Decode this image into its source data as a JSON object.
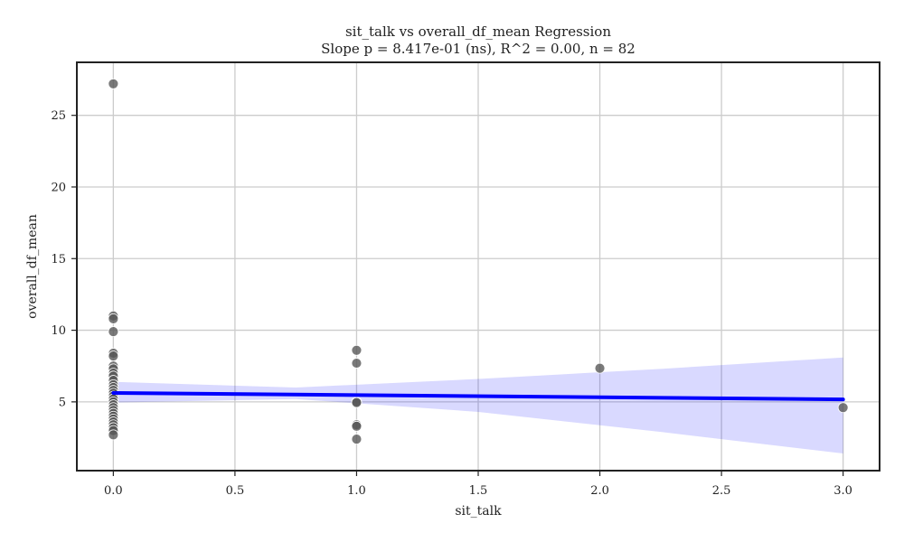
{
  "chart_data": {
    "type": "scatter",
    "title_line1": "sit_talk vs overall_df_mean Regression",
    "title_line2": "Slope p = 8.417e-01 (ns), R^2 = 0.00, n = 82",
    "xlabel": "sit_talk",
    "ylabel": "overall_df_mean",
    "xlim": [
      -0.15,
      3.15
    ],
    "ylim": [
      0.2,
      28.7
    ],
    "xticks": [
      0.0,
      0.5,
      1.0,
      1.5,
      2.0,
      2.5,
      3.0
    ],
    "xtick_labels": [
      "0.0",
      "0.5",
      "1.0",
      "1.5",
      "2.0",
      "2.5",
      "3.0"
    ],
    "yticks": [
      5,
      10,
      15,
      20,
      25
    ],
    "ytick_labels": [
      "5",
      "10",
      "15",
      "20",
      "25"
    ],
    "grid": true,
    "points": [
      {
        "x": 0,
        "y": 27.2
      },
      {
        "x": 0,
        "y": 11.0
      },
      {
        "x": 0,
        "y": 10.8
      },
      {
        "x": 0,
        "y": 9.9
      },
      {
        "x": 0,
        "y": 8.4
      },
      {
        "x": 0,
        "y": 8.2
      },
      {
        "x": 0,
        "y": 7.5
      },
      {
        "x": 0,
        "y": 7.3
      },
      {
        "x": 0,
        "y": 7.0
      },
      {
        "x": 0,
        "y": 6.8
      },
      {
        "x": 0,
        "y": 6.5
      },
      {
        "x": 0,
        "y": 6.2
      },
      {
        "x": 0,
        "y": 6.0
      },
      {
        "x": 0,
        "y": 5.8
      },
      {
        "x": 0,
        "y": 5.6
      },
      {
        "x": 0,
        "y": 5.4
      },
      {
        "x": 0,
        "y": 5.2
      },
      {
        "x": 0,
        "y": 5.0
      },
      {
        "x": 0,
        "y": 4.8
      },
      {
        "x": 0,
        "y": 4.6
      },
      {
        "x": 0,
        "y": 4.4
      },
      {
        "x": 0,
        "y": 4.2
      },
      {
        "x": 0,
        "y": 4.0
      },
      {
        "x": 0,
        "y": 3.8
      },
      {
        "x": 0,
        "y": 3.6
      },
      {
        "x": 0,
        "y": 3.4
      },
      {
        "x": 0,
        "y": 3.2
      },
      {
        "x": 0,
        "y": 3.0
      },
      {
        "x": 0,
        "y": 2.7
      },
      {
        "x": 1,
        "y": 8.6
      },
      {
        "x": 1,
        "y": 7.7
      },
      {
        "x": 1,
        "y": 5.0
      },
      {
        "x": 1,
        "y": 4.95
      },
      {
        "x": 1,
        "y": 3.4
      },
      {
        "x": 1,
        "y": 3.3
      },
      {
        "x": 1,
        "y": 2.4
      },
      {
        "x": 2,
        "y": 7.35
      },
      {
        "x": 3,
        "y": 4.6
      }
    ],
    "point_color": "#555555",
    "regression": {
      "x": [
        0,
        3
      ],
      "y": [
        5.62,
        5.17
      ],
      "color": "#0000ff",
      "ci": {
        "x": [
          0,
          0.75,
          1.5,
          2.25,
          3.0
        ],
        "lower": [
          4.95,
          5.2,
          4.3,
          2.9,
          1.4
        ],
        "upper": [
          6.4,
          6.0,
          6.6,
          7.3,
          8.1
        ],
        "color": "#0000ff",
        "opacity": 0.15
      }
    }
  }
}
